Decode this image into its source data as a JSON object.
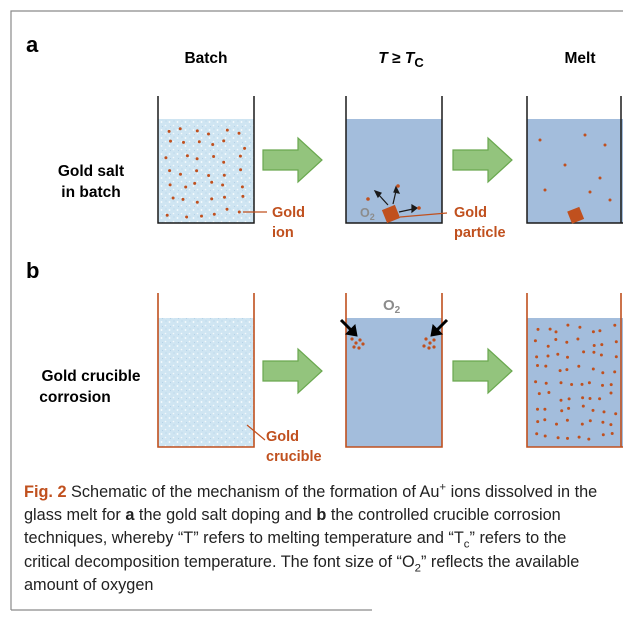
{
  "panel_a": {
    "letter": "a",
    "col1_header": "Batch",
    "col2_header_t": "T",
    "col2_header_ge": " ≥ ",
    "col2_header_tc": "T",
    "col2_header_tc_sub": "C",
    "col3_header": "Melt",
    "row_label_line1": "Gold salt",
    "row_label_line2": "in batch",
    "gold_ion_line1": "Gold",
    "gold_ion_line2": "ion",
    "gold_particle_line1": "Gold",
    "gold_particle_line2": "particle",
    "oxygen_label": "O",
    "oxygen_sub": "2"
  },
  "panel_b": {
    "letter": "b",
    "row_label_line1": "Gold crucible",
    "row_label_line2": "corrosion",
    "gold_crucible_line1": "Gold",
    "gold_crucible_line2": "crucible",
    "oxygen_label": "O",
    "oxygen_sub": "2"
  },
  "caption": {
    "fig_label": "Fig. 2",
    "part1": " Schematic of the mechanism of the formation of Au",
    "sup_plus": "+",
    "part2": " ions dissolved in the glass melt for ",
    "a": "a",
    "part3": " the gold salt doping and ",
    "b": "b",
    "part4": " the controlled crucible corrosion techniques, whereby “T” refers to melting temperature and “T",
    "sub_c": "c",
    "part5": "” refers to the critical decomposition temperature. The font size of “O",
    "sub_2": "2",
    "part6": "” reflects the available amount of oxygen"
  },
  "colors": {
    "melt_blue": "#a3bddc",
    "batch_light": "#cfe5f2",
    "gold_orange": "#c0501e",
    "arrow_green": "#93c47d",
    "arrow_green_edge": "#6aa84f",
    "frame_gray": "#8a8a8a",
    "oxygen_gray": "#8c8c8c"
  }
}
